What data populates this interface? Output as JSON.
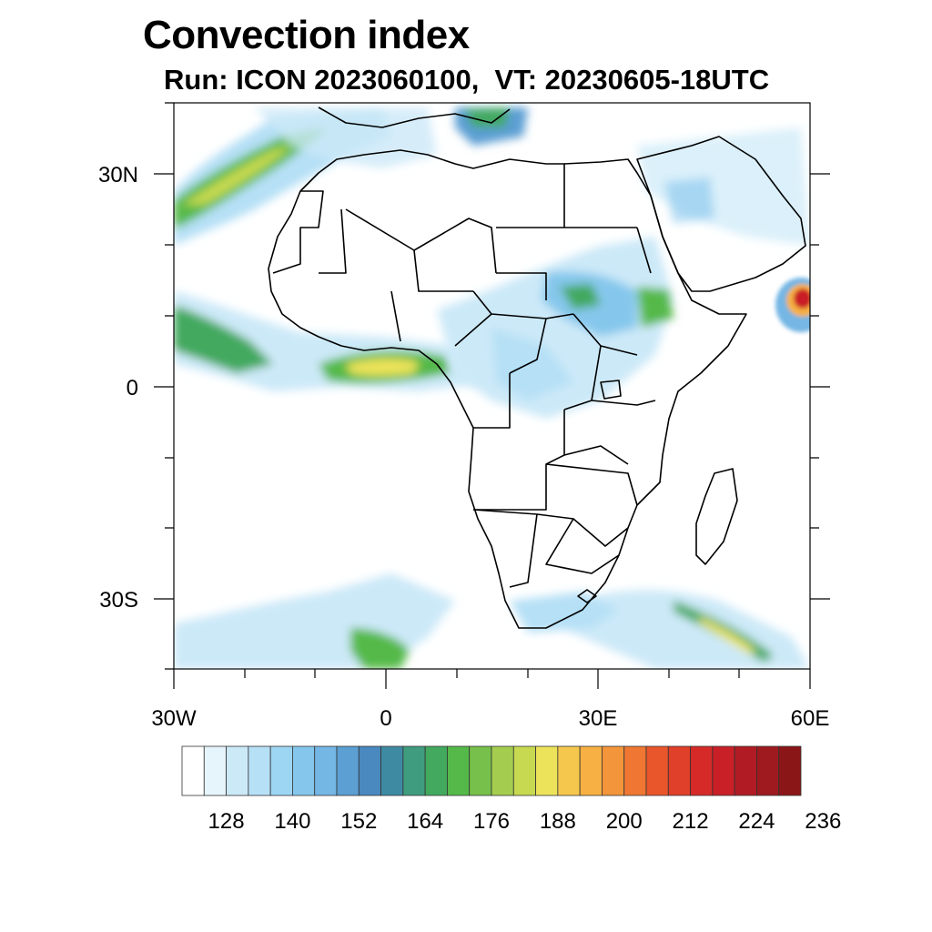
{
  "title": "Convection index",
  "subtitle": "Run: ICON 2023060100,  VT: 20230605-18UTC",
  "axes": {
    "lon_labels": [
      "30W",
      "0",
      "30E",
      "60E"
    ],
    "lat_labels": [
      "30N",
      "0",
      "30S"
    ],
    "lon_range": [
      -30,
      60
    ],
    "lat_range": [
      -40,
      40
    ]
  },
  "colorbar": {
    "labels": [
      "128",
      "140",
      "152",
      "164",
      "176",
      "188",
      "200",
      "212",
      "224",
      "236"
    ],
    "colors": [
      "#ffffff",
      "#e6f4fc",
      "#cce9f8",
      "#b6e0f6",
      "#9dd6f3",
      "#85c7ec",
      "#74b6e4",
      "#5b9fd3",
      "#4a89bf",
      "#3f8aa3",
      "#3f9c7e",
      "#43a95e",
      "#54b949",
      "#76c04b",
      "#a4cd4f",
      "#c7d951",
      "#ece35a",
      "#f5c74d",
      "#f6b043",
      "#f3953a",
      "#ef7733",
      "#e9562c",
      "#e03f2a",
      "#d62a29",
      "#c91f27",
      "#b11b23",
      "#9e1a1f",
      "#8a1618"
    ]
  }
}
